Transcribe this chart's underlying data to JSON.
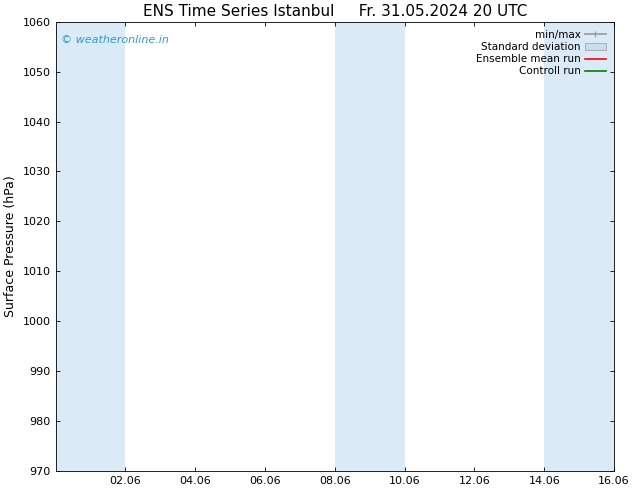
{
  "title_left": "ENS Time Series Istanbul",
  "title_right": "Fr. 31.05.2024 20 UTC",
  "ylabel": "Surface Pressure (hPa)",
  "ylim": [
    970,
    1060
  ],
  "yticks": [
    970,
    980,
    990,
    1000,
    1010,
    1020,
    1030,
    1040,
    1050,
    1060
  ],
  "xlim": [
    0,
    16
  ],
  "xtick_labels": [
    "02.06",
    "04.06",
    "06.06",
    "08.06",
    "10.06",
    "12.06",
    "14.06",
    "16.06"
  ],
  "xtick_positions": [
    2,
    4,
    6,
    8,
    10,
    12,
    14,
    16
  ],
  "bg_color": "#ffffff",
  "plot_bg_color": "#ffffff",
  "shaded_bands": [
    {
      "x_start": 0.0,
      "x_end": 2.0,
      "color": "#daeaf7"
    },
    {
      "x_start": 8.0,
      "x_end": 10.0,
      "color": "#daeaf7"
    },
    {
      "x_start": 14.0,
      "x_end": 16.0,
      "color": "#daeaf7"
    }
  ],
  "watermark_text": "© weatheronline.in",
  "watermark_color": "#3399cc",
  "legend_items": [
    {
      "label": "min/max",
      "color": "#999999",
      "lw": 1.2
    },
    {
      "label": "Standard deviation",
      "color": "#c8ddf0",
      "lw": 6
    },
    {
      "label": "Ensemble mean run",
      "color": "#ff0000",
      "lw": 1.2
    },
    {
      "label": "Controll run",
      "color": "#008000",
      "lw": 1.2
    }
  ],
  "title_fontsize": 11,
  "axis_label_fontsize": 9,
  "tick_fontsize": 8,
  "watermark_fontsize": 8,
  "legend_fontsize": 7.5
}
